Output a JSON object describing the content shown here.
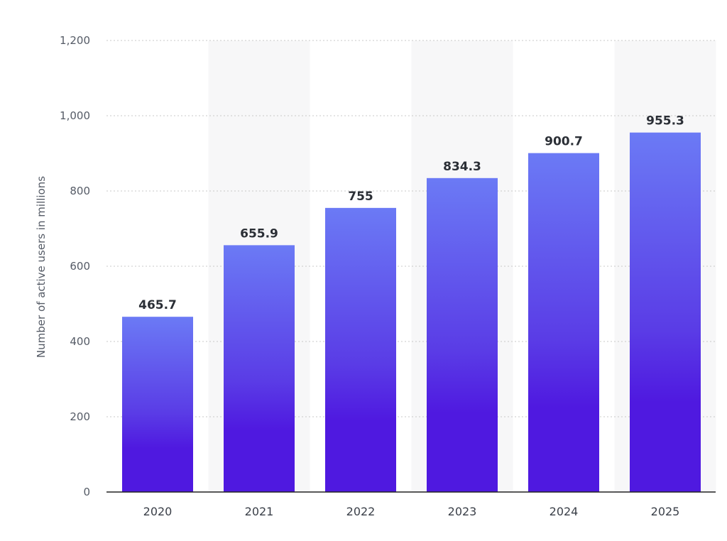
{
  "chart_data": {
    "type": "bar",
    "categories": [
      "2020",
      "2021",
      "2022",
      "2023",
      "2024",
      "2025"
    ],
    "series": [
      {
        "values": [
          465.7,
          655.9,
          755,
          834.3,
          900.7,
          955.3
        ]
      }
    ],
    "value_labels": [
      "465.7",
      "655.9",
      "755",
      "834.3",
      "900.7",
      "955.3"
    ],
    "title": "",
    "xlabel": "",
    "ylabel": "Number of active users in millions",
    "ylim": [
      0,
      1200
    ],
    "yticks": [
      0,
      200,
      400,
      600,
      800,
      1000,
      1200
    ],
    "ytick_labels": [
      "0",
      "200",
      "400",
      "600",
      "800",
      "1,000",
      "1,200"
    ],
    "grid": true,
    "alternating_column_shading": true,
    "legend": "none",
    "colors": {
      "bar_top": "#6b7af5",
      "bar_bottom": "#4f19e0",
      "grid": "#c8c8c8",
      "axis": "#222222",
      "shading": "#f7f7f8"
    }
  }
}
